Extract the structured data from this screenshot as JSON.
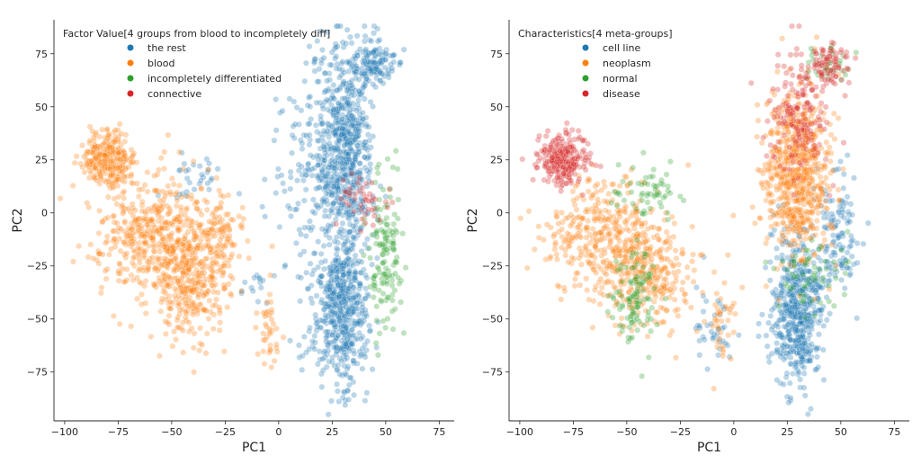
{
  "chart_data": [
    {
      "type": "scatter",
      "xlabel": "PC1",
      "ylabel": "PC2",
      "xlim": [
        -105,
        82
      ],
      "ylim": [
        -98,
        91
      ],
      "xticks": [
        -100,
        -75,
        -50,
        -25,
        0,
        25,
        50,
        75
      ],
      "yticks": [
        -75,
        -50,
        -25,
        0,
        25,
        50,
        75
      ],
      "grid": false,
      "legend": {
        "title": "Factor Value[4 groups from blood to incompletely diff]",
        "placement": "top-left",
        "entries": [
          {
            "label": "the rest",
            "color": "#1f77b4"
          },
          {
            "label": "blood",
            "color": "#ff7f0e"
          },
          {
            "label": "incompletely differentiated",
            "color": "#2ca02c"
          },
          {
            "label": "connective",
            "color": "#d62728"
          }
        ]
      },
      "series": [
        {
          "name": "the rest",
          "color": "#1f77b4",
          "clusters": [
            {
              "cx": 30,
              "cy": 30,
              "sx": 7,
              "sy": 25,
              "n": 700
            },
            {
              "cx": 30,
              "cy": -45,
              "sx": 6,
              "sy": 18,
              "n": 520
            },
            {
              "cx": 45,
              "cy": 70,
              "sx": 5,
              "sy": 5,
              "n": 130
            },
            {
              "cx": 10,
              "cy": 20,
              "sx": 8,
              "sy": 20,
              "n": 90
            },
            {
              "cx": -38,
              "cy": 15,
              "sx": 6,
              "sy": 6,
              "n": 30
            },
            {
              "cx": -10,
              "cy": -35,
              "sx": 4,
              "sy": 5,
              "n": 15
            },
            {
              "cx": 15,
              "cy": -55,
              "sx": 5,
              "sy": 12,
              "n": 25
            }
          ]
        },
        {
          "name": "blood",
          "color": "#ff7f0e",
          "clusters": [
            {
              "cx": -80,
              "cy": 25,
              "sx": 6,
              "sy": 6,
              "n": 260
            },
            {
              "cx": -60,
              "cy": -10,
              "sx": 14,
              "sy": 14,
              "n": 420
            },
            {
              "cx": -40,
              "cy": -30,
              "sx": 10,
              "sy": 15,
              "n": 380
            },
            {
              "cx": -25,
              "cy": -10,
              "sx": 5,
              "sy": 10,
              "n": 70
            },
            {
              "cx": -5,
              "cy": -55,
              "sx": 3,
              "sy": 10,
              "n": 40
            }
          ]
        },
        {
          "name": "incompletely differentiated",
          "color": "#2ca02c",
          "clusters": [
            {
              "cx": 50,
              "cy": -20,
              "sx": 4,
              "sy": 18,
              "n": 140
            }
          ]
        },
        {
          "name": "connective",
          "color": "#d62728",
          "clusters": [
            {
              "cx": 40,
              "cy": 5,
              "sx": 6,
              "sy": 6,
              "n": 45
            }
          ]
        }
      ]
    },
    {
      "type": "scatter",
      "xlabel": "PC1",
      "ylabel": "PC2",
      "xlim": [
        -105,
        82
      ],
      "ylim": [
        -98,
        91
      ],
      "xticks": [
        -100,
        -75,
        -50,
        -25,
        0,
        25,
        50,
        75
      ],
      "yticks": [
        -75,
        -50,
        -25,
        0,
        25,
        50,
        75
      ],
      "grid": false,
      "legend": {
        "title": "Characteristics[4 meta-groups]",
        "placement": "top-left",
        "entries": [
          {
            "label": "cell line",
            "color": "#1f77b4"
          },
          {
            "label": "neoplasm",
            "color": "#ff7f0e"
          },
          {
            "label": "normal",
            "color": "#2ca02c"
          },
          {
            "label": "disease",
            "color": "#d62728"
          }
        ]
      },
      "series": [
        {
          "name": "cell line",
          "color": "#1f77b4",
          "clusters": [
            {
              "cx": 30,
              "cy": -45,
              "sx": 6,
              "sy": 18,
              "n": 560
            },
            {
              "cx": 48,
              "cy": -10,
              "sx": 5,
              "sy": 15,
              "n": 120
            },
            {
              "cx": -10,
              "cy": -55,
              "sx": 5,
              "sy": 10,
              "n": 40
            }
          ]
        },
        {
          "name": "neoplasm",
          "color": "#ff7f0e",
          "clusters": [
            {
              "cx": 30,
              "cy": 20,
              "sx": 8,
              "sy": 20,
              "n": 700
            },
            {
              "cx": -60,
              "cy": -10,
              "sx": 14,
              "sy": 14,
              "n": 380
            },
            {
              "cx": -40,
              "cy": -30,
              "sx": 10,
              "sy": 12,
              "n": 260
            },
            {
              "cx": -5,
              "cy": -50,
              "sx": 4,
              "sy": 10,
              "n": 40
            }
          ]
        },
        {
          "name": "normal",
          "color": "#2ca02c",
          "clusters": [
            {
              "cx": -45,
              "cy": -40,
              "sx": 6,
              "sy": 12,
              "n": 110
            },
            {
              "cx": -40,
              "cy": 10,
              "sx": 8,
              "sy": 8,
              "n": 60
            },
            {
              "cx": 35,
              "cy": -30,
              "sx": 8,
              "sy": 8,
              "n": 60
            },
            {
              "cx": 45,
              "cy": 70,
              "sx": 5,
              "sy": 5,
              "n": 40
            }
          ]
        },
        {
          "name": "disease",
          "color": "#d62728",
          "clusters": [
            {
              "cx": -80,
              "cy": 25,
              "sx": 6,
              "sy": 6,
              "n": 260
            },
            {
              "cx": 30,
              "cy": 45,
              "sx": 8,
              "sy": 15,
              "n": 170
            },
            {
              "cx": 45,
              "cy": 70,
              "sx": 5,
              "sy": 5,
              "n": 80
            }
          ]
        }
      ]
    }
  ]
}
